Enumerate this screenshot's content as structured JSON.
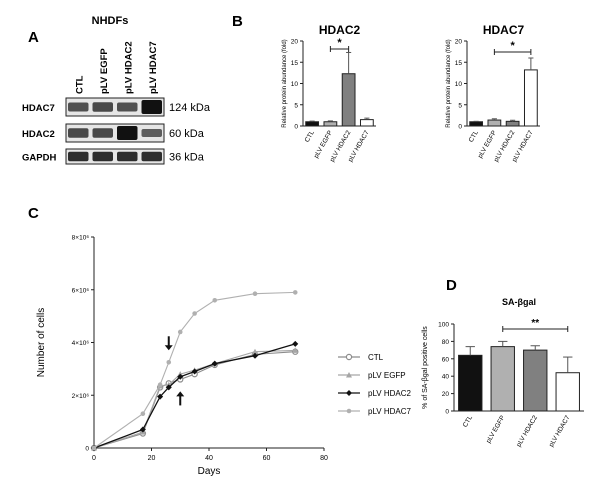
{
  "panels": {
    "a": {
      "letter": "A",
      "title": "NHDFs",
      "lanes": [
        "CTL",
        "pLV EGFP",
        "pLV HDAC2",
        "pLV HDAC7"
      ],
      "rows": [
        {
          "protein": "HDAC7",
          "size": "124 kDa",
          "intensity": [
            0.55,
            0.6,
            0.55,
            1.0
          ]
        },
        {
          "protein": "HDAC2",
          "size": "60 kDa",
          "intensity": [
            0.6,
            0.6,
            1.0,
            0.45
          ]
        },
        {
          "protein": "GAPDH",
          "size": "36 kDa",
          "intensity": [
            0.8,
            0.8,
            0.8,
            0.8
          ]
        }
      ]
    },
    "b": {
      "letter": "B"
    },
    "c": {
      "letter": "C"
    },
    "d": {
      "letter": "D"
    }
  },
  "chart_data": [
    {
      "id": "hdac2",
      "type": "bar",
      "title": "HDAC2",
      "ylabel": "Relative protein abundance (fold)",
      "xlabel": "",
      "ylim": [
        0,
        20
      ],
      "yticks": [
        0,
        5,
        10,
        15,
        20
      ],
      "categories": [
        "CTL",
        "pLV EGFP",
        "pLV HDAC2",
        "pLV HDAC7"
      ],
      "values": [
        1.0,
        1.0,
        12.3,
        1.5
      ],
      "errors": [
        0.15,
        0.2,
        5.0,
        0.35
      ],
      "colors": [
        "#111111",
        "#b0b0b0",
        "#808080",
        "#ffffff"
      ],
      "significance": {
        "from": 1,
        "to": 2,
        "label": "*"
      }
    },
    {
      "id": "hdac7",
      "type": "bar",
      "title": "HDAC7",
      "ylabel": "Relative protein abundance (fold)",
      "xlabel": "",
      "ylim": [
        0,
        20
      ],
      "yticks": [
        0,
        5,
        10,
        15,
        20
      ],
      "categories": [
        "CTL",
        "pLV EGFP",
        "pLV HDAC2",
        "pLV HDAC7"
      ],
      "values": [
        1.0,
        1.4,
        1.1,
        13.2
      ],
      "errors": [
        0.1,
        0.3,
        0.25,
        2.8
      ],
      "colors": [
        "#111111",
        "#b0b0b0",
        "#808080",
        "#ffffff"
      ],
      "significance": {
        "from": 1,
        "to": 3,
        "label": "*"
      }
    },
    {
      "id": "growth",
      "type": "line",
      "title": "",
      "xlabel": "Days",
      "ylabel": "Number of cells",
      "xlim": [
        0,
        80
      ],
      "xticks": [
        0,
        20,
        40,
        60,
        80
      ],
      "ylim": [
        0,
        8000000
      ],
      "yticks": [
        {
          "v": 0,
          "label": "0"
        },
        {
          "v": 2000000,
          "label": "2×10⁶"
        },
        {
          "v": 4000000,
          "label": "4×10⁶"
        },
        {
          "v": 6000000,
          "label": "6×10⁶"
        },
        {
          "v": 8000000,
          "label": "8×10⁶"
        }
      ],
      "x": [
        0,
        17,
        23,
        26,
        30,
        35,
        42,
        56,
        70
      ],
      "series": [
        {
          "name": "CTL",
          "values": [
            0,
            550000,
            2300000,
            2450000,
            2600000,
            2800000,
            3150000,
            3550000,
            3650000
          ],
          "color": "#8c8c8c",
          "marker": "open-circle"
        },
        {
          "name": "pLV EGFP",
          "values": [
            0,
            600000,
            2350000,
            2400000,
            2800000,
            2950000,
            3200000,
            3650000,
            3700000
          ],
          "color": "#a6a6a6",
          "marker": "triangle"
        },
        {
          "name": "pLV HDAC2",
          "values": [
            0,
            700000,
            1950000,
            2300000,
            2700000,
            2900000,
            3200000,
            3500000,
            3950000
          ],
          "color": "#111111",
          "marker": "diamond"
        },
        {
          "name": "pLV HDAC7",
          "values": [
            0,
            1300000,
            2400000,
            3250000,
            4400000,
            5100000,
            5600000,
            5850000,
            5900000
          ],
          "color": "#b0b0b0",
          "marker": "dot"
        }
      ],
      "annotations": [
        {
          "type": "arrow-down",
          "x": 26,
          "y": 3250000
        },
        {
          "type": "arrow-up",
          "x": 30,
          "y": 2600000
        }
      ]
    },
    {
      "id": "sabgal",
      "type": "bar",
      "title": "SA-βgal",
      "ylabel": "% of SA-βgal positive cells",
      "xlabel": "",
      "ylim": [
        0,
        100
      ],
      "yticks": [
        0,
        20,
        40,
        60,
        80,
        100
      ],
      "categories": [
        "CTL",
        "pLV EGFP",
        "pLV HDAC2",
        "pLV HDAC7"
      ],
      "values": [
        64,
        74,
        70,
        44
      ],
      "errors": [
        10,
        6,
        5,
        18
      ],
      "colors": [
        "#111111",
        "#b0b0b0",
        "#808080",
        "#ffffff"
      ],
      "significance": {
        "from": 1,
        "to": 3,
        "label": "**"
      }
    }
  ]
}
